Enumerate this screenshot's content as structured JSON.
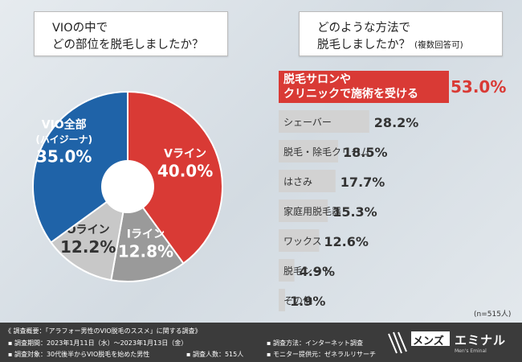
{
  "q1": {
    "line1": "VIOの中で",
    "line2": "どの部位を脱毛しましたか？"
  },
  "q2": {
    "line1": "どのような方法で",
    "line2": "脱毛しましたか？",
    "note": "(複数回答可)"
  },
  "chart_data": [
    {
      "type": "pie",
      "slices": [
        {
          "name": "Vライン",
          "value": 40.0,
          "label": "40.0%",
          "color": "#d93a35"
        },
        {
          "name": "Iライン",
          "value": 12.8,
          "label": "12.8%",
          "color": "#9a9a9a"
        },
        {
          "name": "Oライン",
          "value": 12.2,
          "label": "12.2%",
          "color": "#c8c8c8"
        },
        {
          "name": "VIO全部",
          "sub": "(ハイジーナ)",
          "value": 35.0,
          "label": "35.0%",
          "color": "#1f63a8"
        }
      ]
    },
    {
      "type": "bar",
      "orientation": "horizontal",
      "categories": [
        "脱毛サロンやクリニックで施術を受ける",
        "シェーバー",
        "脱毛・除毛クリーム",
        "はさみ",
        "家庭用脱毛器",
        "ワックス",
        "脱毛シート",
        "その他"
      ],
      "label_lines": [
        [
          "脱毛サロンや",
          "クリニックで施術を受ける"
        ],
        [
          "シェーバー"
        ],
        [
          "脱毛・除毛クリーム"
        ],
        [
          "はさみ"
        ],
        [
          "家庭用脱毛器"
        ],
        [
          "ワックス"
        ],
        [
          "脱毛シート"
        ],
        [
          "その他"
        ]
      ],
      "values": [
        53.0,
        28.2,
        18.5,
        17.7,
        15.3,
        12.6,
        4.9,
        1.9
      ],
      "value_labels": [
        "53.0%",
        "28.2%",
        "18.5%",
        "17.7%",
        "15.3%",
        "12.6%",
        "4.9%",
        "1.9%"
      ],
      "highlight_color": "#d93a35",
      "bar_color": "#d2d2d2"
    }
  ],
  "n_note": "(n=515人)",
  "footer": {
    "title": "《 調査概要：「アラフォー男性のVIO脱毛のススメ」に関する調査》",
    "period": "▪ 調査期間：2023年1月11日（水）〜2023年1月13日（金）",
    "target": "▪ 調査対象：30代後半からVIO脱毛を始めた男性",
    "count": "▪ 調査人数：515人",
    "method": "▪ 調査方法：インターネット調査",
    "provider": "▪ モニター提供元：ゼネラルリサーチ"
  },
  "brand": {
    "box": "メンズ",
    "name": "エミナル",
    "tagline": "Men's Eminal"
  }
}
